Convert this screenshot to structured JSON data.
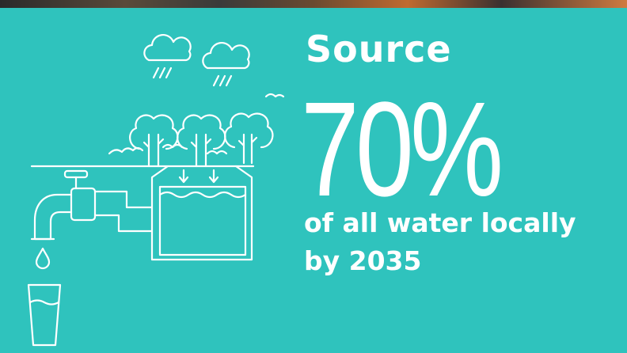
{
  "headline": "Source",
  "stat": "70%",
  "subtext": {
    "line1": "of all water locally",
    "line2": "by 2035"
  },
  "colors": {
    "background": "#2fc3bd",
    "foreground": "#ffffff"
  },
  "icons": [
    "rain-cloud-icon",
    "tree-icon",
    "water-tank-icon",
    "faucet-icon",
    "water-drop-icon",
    "glass-icon"
  ]
}
